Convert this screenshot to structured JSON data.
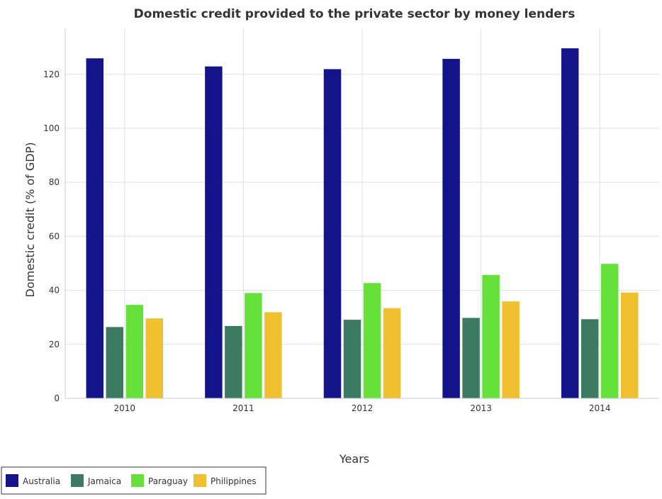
{
  "chart_data": {
    "type": "bar",
    "title": "Domestic credit provided to the private sector by money lenders",
    "xlabel": "Years",
    "ylabel": "Domestic credit (% of GDP)",
    "categories": [
      "2010",
      "2011",
      "2012",
      "2013",
      "2014"
    ],
    "ylim": [
      0,
      137
    ],
    "yticks": [
      0,
      20,
      40,
      60,
      80,
      100,
      120
    ],
    "ytick_labels": [
      "0",
      "20",
      "40",
      "60",
      "80",
      "100",
      "120"
    ],
    "grid": true,
    "legend_position": "bottom-left",
    "series": [
      {
        "name": "Australia",
        "color": "#14148a",
        "values": [
          125.9,
          122.9,
          121.9,
          125.7,
          129.6
        ]
      },
      {
        "name": "Jamaica",
        "color": "#3d7a62",
        "values": [
          26.4,
          26.8,
          29.1,
          29.8,
          29.3
        ]
      },
      {
        "name": "Paraguay",
        "color": "#66e03a",
        "values": [
          34.6,
          39.0,
          42.7,
          45.7,
          49.8
        ]
      },
      {
        "name": "Philippines",
        "color": "#f0c030",
        "values": [
          29.6,
          31.9,
          33.4,
          35.9,
          39.2
        ]
      }
    ]
  }
}
